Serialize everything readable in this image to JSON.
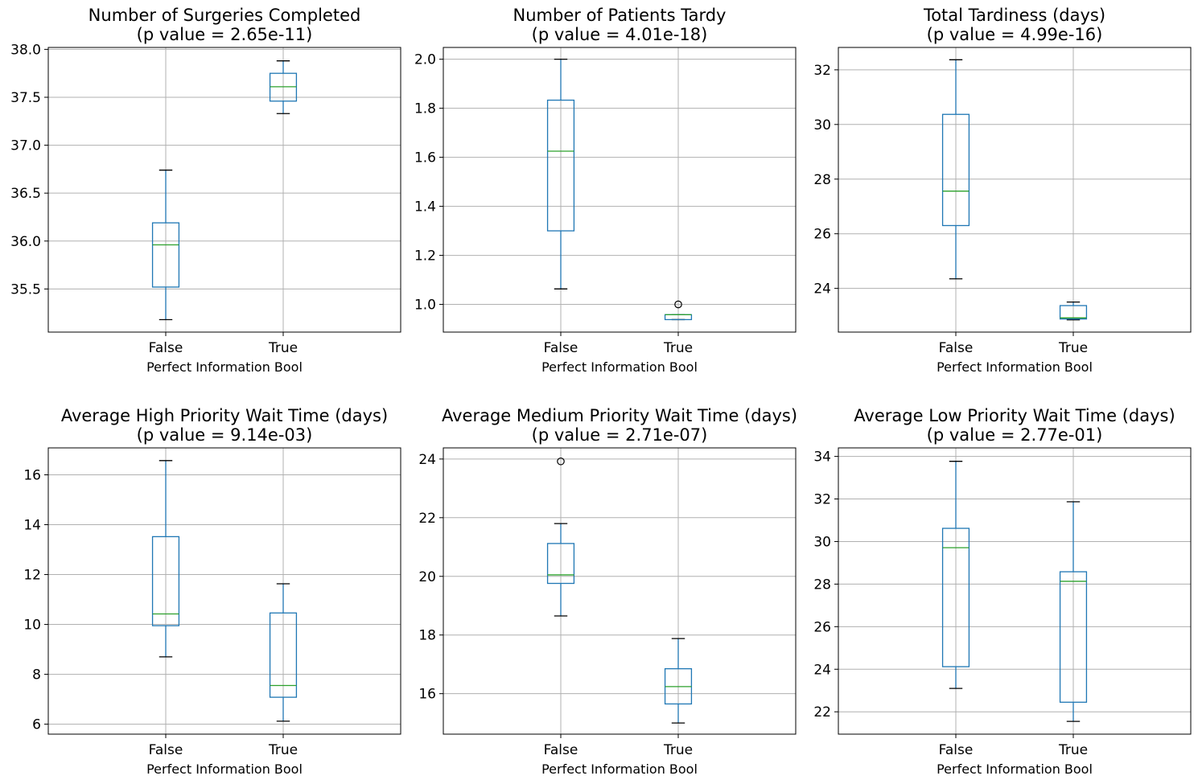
{
  "figure": {
    "panel_xlabel": "Perfect Information Bool",
    "categories": [
      "False",
      "True"
    ]
  },
  "style": {
    "box_color": "#1f77b4",
    "median_color": "#2ca02c",
    "whisker_cap_color": "#000000",
    "grid_color": "#b0b0b0",
    "axes_color": "#000000"
  },
  "chart_data": [
    {
      "type": "box",
      "title": "Number of Surgeries Completed",
      "subtitle": "(p value = 2.65e-11)",
      "xlabel": "Perfect Information Bool",
      "categories": [
        "False",
        "True"
      ],
      "ylim": [
        35.05,
        38.02
      ],
      "yticks": [
        35.5,
        36.0,
        36.5,
        37.0,
        37.5,
        38.0
      ],
      "ytick_labels": [
        "35.5",
        "36.0",
        "36.5",
        "37.0",
        "37.5",
        "38.0"
      ],
      "grid": true,
      "boxes": [
        {
          "category": "False",
          "whisker_low": 35.18,
          "q1": 35.52,
          "median": 35.96,
          "q3": 36.19,
          "whisker_high": 36.74,
          "outliers": []
        },
        {
          "category": "True",
          "whisker_low": 37.33,
          "q1": 37.46,
          "median": 37.61,
          "q3": 37.75,
          "whisker_high": 37.88,
          "outliers": []
        }
      ]
    },
    {
      "type": "box",
      "title": "Number of Patients Tardy",
      "subtitle": "(p value = 4.01e-18)",
      "xlabel": "Perfect Information Bool",
      "categories": [
        "False",
        "True"
      ],
      "ylim": [
        0.887,
        2.048
      ],
      "yticks": [
        1.0,
        1.2,
        1.4,
        1.6,
        1.8,
        2.0
      ],
      "ytick_labels": [
        "1.0",
        "1.2",
        "1.4",
        "1.6",
        "1.8",
        "2.0"
      ],
      "grid": true,
      "boxes": [
        {
          "category": "False",
          "whisker_low": 1.063,
          "q1": 1.3,
          "median": 1.625,
          "q3": 1.833,
          "whisker_high": 2.0,
          "outliers": []
        },
        {
          "category": "True",
          "whisker_low": 0.938,
          "q1": 0.938,
          "median": 0.958,
          "q3": 0.958,
          "whisker_high": 0.958,
          "outliers": [
            1.0
          ]
        }
      ]
    },
    {
      "type": "box",
      "title": "Total Tardiness (days)",
      "subtitle": "(p value = 4.99e-16)",
      "xlabel": "Perfect Information Bool",
      "categories": [
        "False",
        "True"
      ],
      "ylim": [
        22.4,
        32.82
      ],
      "yticks": [
        24,
        26,
        28,
        30,
        32
      ],
      "ytick_labels": [
        "24",
        "26",
        "28",
        "30",
        "32"
      ],
      "grid": true,
      "boxes": [
        {
          "category": "False",
          "whisker_low": 24.35,
          "q1": 26.3,
          "median": 27.56,
          "q3": 30.37,
          "whisker_high": 32.37,
          "outliers": []
        },
        {
          "category": "True",
          "whisker_low": 22.85,
          "q1": 22.88,
          "median": 22.92,
          "q3": 23.37,
          "whisker_high": 23.5,
          "outliers": []
        }
      ]
    },
    {
      "type": "box",
      "title": "Average High Priority Wait Time (days)",
      "subtitle": "(p value = 9.14e-03)",
      "xlabel": "Perfect Information Bool",
      "categories": [
        "False",
        "True"
      ],
      "ylim": [
        5.6,
        17.08
      ],
      "yticks": [
        6,
        8,
        10,
        12,
        14,
        16
      ],
      "ytick_labels": [
        "6",
        "8",
        "10",
        "12",
        "14",
        "16"
      ],
      "grid": true,
      "boxes": [
        {
          "category": "False",
          "whisker_low": 8.7,
          "q1": 9.95,
          "median": 10.42,
          "q3": 13.52,
          "whisker_high": 16.57,
          "outliers": []
        },
        {
          "category": "True",
          "whisker_low": 6.12,
          "q1": 7.08,
          "median": 7.55,
          "q3": 10.46,
          "whisker_high": 11.63,
          "outliers": []
        }
      ]
    },
    {
      "type": "box",
      "title": "Average Medium Priority Wait Time (days)",
      "subtitle": "(p value = 2.71e-07)",
      "xlabel": "Perfect Information Bool",
      "categories": [
        "False",
        "True"
      ],
      "ylim": [
        14.62,
        24.38
      ],
      "yticks": [
        16,
        18,
        20,
        22,
        24
      ],
      "ytick_labels": [
        "16",
        "18",
        "20",
        "22",
        "24"
      ],
      "grid": true,
      "boxes": [
        {
          "category": "False",
          "whisker_low": 18.65,
          "q1": 19.76,
          "median": 20.05,
          "q3": 21.12,
          "whisker_high": 21.8,
          "outliers": [
            23.92
          ]
        },
        {
          "category": "True",
          "whisker_low": 15.0,
          "q1": 15.65,
          "median": 16.24,
          "q3": 16.85,
          "whisker_high": 17.88,
          "outliers": []
        }
      ]
    },
    {
      "type": "box",
      "title": "Average Low Priority Wait Time (days)",
      "subtitle": "(p value = 2.77e-01)",
      "xlabel": "Perfect Information Bool",
      "categories": [
        "False",
        "True"
      ],
      "ylim": [
        20.95,
        34.4
      ],
      "yticks": [
        22,
        24,
        26,
        28,
        30,
        32,
        34
      ],
      "ytick_labels": [
        "22",
        "24",
        "26",
        "28",
        "30",
        "32",
        "34"
      ],
      "grid": true,
      "boxes": [
        {
          "category": "False",
          "whisker_low": 23.1,
          "q1": 24.12,
          "median": 29.71,
          "q3": 30.62,
          "whisker_high": 33.77,
          "outliers": []
        },
        {
          "category": "True",
          "whisker_low": 21.55,
          "q1": 22.45,
          "median": 28.13,
          "q3": 28.58,
          "whisker_high": 31.87,
          "outliers": []
        }
      ]
    }
  ]
}
